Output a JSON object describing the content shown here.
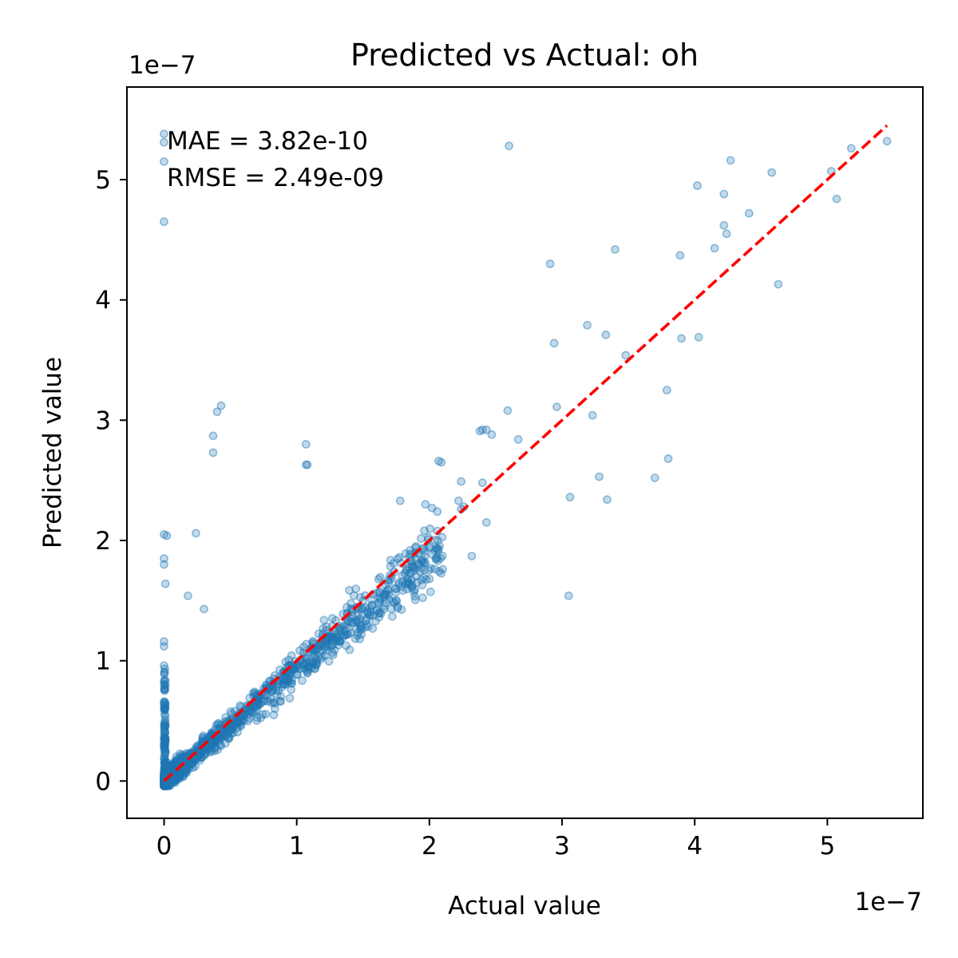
{
  "chart_data": {
    "type": "scatter",
    "title": "Predicted vs Actual: oh",
    "xlabel": "Actual value",
    "ylabel": "Predicted value",
    "x_offset_label": "1e−7",
    "y_offset_label": "1e−7",
    "scale": 1e-07,
    "xlim": [
      -0.28,
      5.72
    ],
    "ylim": [
      -0.31,
      5.77
    ],
    "xticks": [
      0,
      1,
      2,
      3,
      4,
      5
    ],
    "yticks": [
      0,
      1,
      2,
      3,
      4,
      5
    ],
    "xtick_labels": [
      "0",
      "1",
      "2",
      "3",
      "4",
      "5"
    ],
    "ytick_labels": [
      "0",
      "1",
      "2",
      "3",
      "4",
      "5"
    ],
    "grid": false,
    "marker_color": "#1f77b4",
    "identity_line": {
      "from": [
        0,
        0
      ],
      "to": [
        5.45,
        5.45
      ],
      "color": "#ff0000",
      "style": "dashed"
    },
    "annotations": {
      "mae": "MAE  = 3.82e-10",
      "rmse": "RMSE = 2.49e-09"
    },
    "outlier_points": [
      [
        0.0,
        5.38
      ],
      [
        0.0,
        5.31
      ],
      [
        0.0,
        5.15
      ],
      [
        0.0,
        4.65
      ],
      [
        2.6,
        5.28
      ],
      [
        5.45,
        5.32
      ],
      [
        5.18,
        5.26
      ],
      [
        5.03,
        5.07
      ],
      [
        5.07,
        4.84
      ],
      [
        4.58,
        5.06
      ],
      [
        4.27,
        5.16
      ],
      [
        4.22,
        4.88
      ],
      [
        4.02,
        4.95
      ],
      [
        4.41,
        4.72
      ],
      [
        4.22,
        4.62
      ],
      [
        4.24,
        4.55
      ],
      [
        4.15,
        4.43
      ],
      [
        3.89,
        4.37
      ],
      [
        4.63,
        4.13
      ],
      [
        3.4,
        4.42
      ],
      [
        2.91,
        4.3
      ],
      [
        3.19,
        3.79
      ],
      [
        3.33,
        3.71
      ],
      [
        3.48,
        3.54
      ],
      [
        2.94,
        3.64
      ],
      [
        3.9,
        3.68
      ],
      [
        4.03,
        3.69
      ],
      [
        3.79,
        3.25
      ],
      [
        2.59,
        3.08
      ],
      [
        2.96,
        3.11
      ],
      [
        3.23,
        3.04
      ],
      [
        2.67,
        2.84
      ],
      [
        2.43,
        2.92
      ],
      [
        2.47,
        2.88
      ],
      [
        2.38,
        2.91
      ],
      [
        2.4,
        2.92
      ],
      [
        2.09,
        2.65
      ],
      [
        2.07,
        2.66
      ],
      [
        1.07,
        2.8
      ],
      [
        1.08,
        2.63
      ],
      [
        0.43,
        3.12
      ],
      [
        0.4,
        3.07
      ],
      [
        0.37,
        2.87
      ],
      [
        0.37,
        2.73
      ],
      [
        3.8,
        2.68
      ],
      [
        3.7,
        2.52
      ],
      [
        3.28,
        2.53
      ],
      [
        3.34,
        2.34
      ],
      [
        3.06,
        2.36
      ],
      [
        3.05,
        1.54
      ],
      [
        2.26,
        2.28
      ],
      [
        2.24,
        2.26
      ],
      [
        2.43,
        2.15
      ],
      [
        2.32,
        1.87
      ],
      [
        2.24,
        2.49
      ],
      [
        1.78,
        2.33
      ],
      [
        2.22,
        2.33
      ],
      [
        1.97,
        2.3
      ],
      [
        2.02,
        2.27
      ],
      [
        2.06,
        2.24
      ],
      [
        0.0,
        2.05
      ],
      [
        0.02,
        2.04
      ],
      [
        0.24,
        2.06
      ],
      [
        0.0,
        1.85
      ],
      [
        0.0,
        1.8
      ],
      [
        0.01,
        1.64
      ],
      [
        0.18,
        1.54
      ],
      [
        0.3,
        1.43
      ],
      [
        0.0,
        1.16
      ],
      [
        0.0,
        1.12
      ],
      [
        0.0,
        0.96
      ],
      [
        1.07,
        2.63
      ],
      [
        2.4,
        2.48
      ],
      [
        1.95,
        1.82
      ],
      [
        1.9,
        1.95
      ],
      [
        1.83,
        1.76
      ],
      [
        1.73,
        1.81
      ],
      [
        2.0,
        1.68
      ],
      [
        2.1,
        1.76
      ]
    ]
  }
}
